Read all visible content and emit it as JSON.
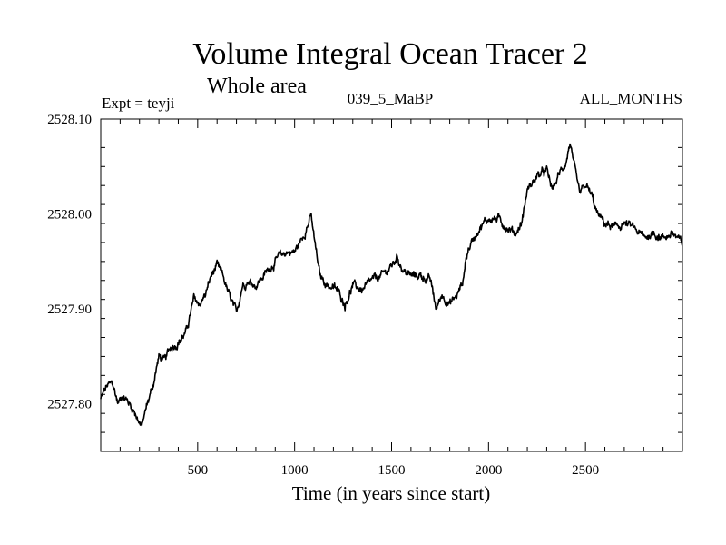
{
  "chart_data": {
    "type": "line",
    "title": "Volume Integral Ocean Tracer 2",
    "subtitle": "Whole area",
    "experiment": "Expt = teyji",
    "run": "039_5_MaBP",
    "period": "ALL_MONTHS",
    "xlabel": "Time (in years since start)",
    "ylabel": "",
    "xlim": [
      0,
      3000
    ],
    "ylim": [
      2527.75,
      2528.1
    ],
    "x_ticks": [
      {
        "value": 500,
        "label": "500"
      },
      {
        "value": 1000,
        "label": "1000"
      },
      {
        "value": 1500,
        "label": "1500"
      },
      {
        "value": 2000,
        "label": "2000"
      },
      {
        "value": 2500,
        "label": "2500"
      }
    ],
    "y_ticks": [
      {
        "value": 2527.8,
        "label": "2527.80"
      },
      {
        "value": 2527.9,
        "label": "2527.90"
      },
      {
        "value": 2528.0,
        "label": "2528.00"
      },
      {
        "value": 2528.1,
        "label": "2528.10"
      }
    ],
    "grid": false,
    "series": [
      {
        "name": "Volume Integral Ocean Tracer 2",
        "color": "#000000",
        "x": [
          0,
          30,
          60,
          90,
          110,
          150,
          180,
          210,
          240,
          270,
          300,
          330,
          360,
          400,
          440,
          480,
          510,
          540,
          570,
          600,
          630,
          660,
          700,
          730,
          760,
          800,
          840,
          880,
          920,
          960,
          1000,
          1040,
          1070,
          1085,
          1100,
          1130,
          1170,
          1220,
          1260,
          1300,
          1350,
          1400,
          1450,
          1500,
          1530,
          1560,
          1600,
          1650,
          1700,
          1730,
          1760,
          1800,
          1840,
          1870,
          1880,
          1900,
          1950,
          2000,
          2050,
          2100,
          2140,
          2170,
          2200,
          2250,
          2300,
          2330,
          2360,
          2400,
          2420,
          2440,
          2470,
          2500,
          2530,
          2560,
          2600,
          2650,
          2700,
          2750,
          2800,
          2850,
          2900,
          2950,
          3000
        ],
        "y": [
          2527.805,
          2527.818,
          2527.822,
          2527.8,
          2527.81,
          2527.8,
          2527.79,
          2527.775,
          2527.8,
          2527.82,
          2527.85,
          2527.845,
          2527.86,
          2527.865,
          2527.875,
          2527.91,
          2527.905,
          2527.915,
          2527.935,
          2527.945,
          2527.935,
          2527.915,
          2527.895,
          2527.925,
          2527.93,
          2527.925,
          2527.935,
          2527.945,
          2527.955,
          2527.96,
          2527.96,
          2527.975,
          2527.99,
          2527.998,
          2527.975,
          2527.935,
          2527.925,
          2527.92,
          2527.905,
          2527.925,
          2527.92,
          2527.93,
          2527.935,
          2527.945,
          2527.955,
          2527.94,
          2527.935,
          2527.935,
          2527.93,
          2527.9,
          2527.915,
          2527.905,
          2527.915,
          2527.93,
          2527.95,
          2527.965,
          2527.985,
          2527.995,
          2527.995,
          2527.985,
          2527.98,
          2527.99,
          2528.025,
          2528.04,
          2528.045,
          2528.025,
          2528.04,
          2528.055,
          2528.075,
          2528.05,
          2528.02,
          2528.03,
          2528.02,
          2528.0,
          2527.99,
          2527.985,
          2527.99,
          2527.985,
          2527.975,
          2527.98,
          2527.975,
          2527.98,
          2527.968
        ]
      }
    ]
  }
}
